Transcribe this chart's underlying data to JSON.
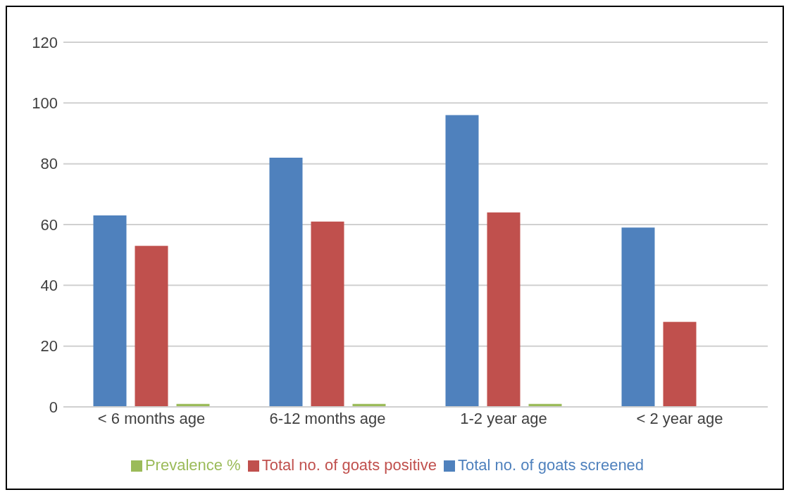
{
  "chart_data": {
    "type": "bar",
    "categories": [
      "< 6 months age",
      "6-12 months age",
      "1-2 year age",
      "< 2 year age"
    ],
    "series": [
      {
        "name": "Total no. of goats screened",
        "color": "#4f81bd",
        "values": [
          63,
          82,
          96,
          59
        ]
      },
      {
        "name": "Total no. of goats positive",
        "color": "#c0504d",
        "values": [
          53,
          61,
          64,
          28
        ]
      },
      {
        "name": "Prevalence %",
        "color": "#9bbb59",
        "values": [
          1,
          1,
          1,
          null
        ]
      }
    ],
    "ylim": [
      0,
      120
    ],
    "yticks": [
      0,
      20,
      40,
      60,
      80,
      100,
      120
    ],
    "grid": "y",
    "legend": "bottom"
  }
}
